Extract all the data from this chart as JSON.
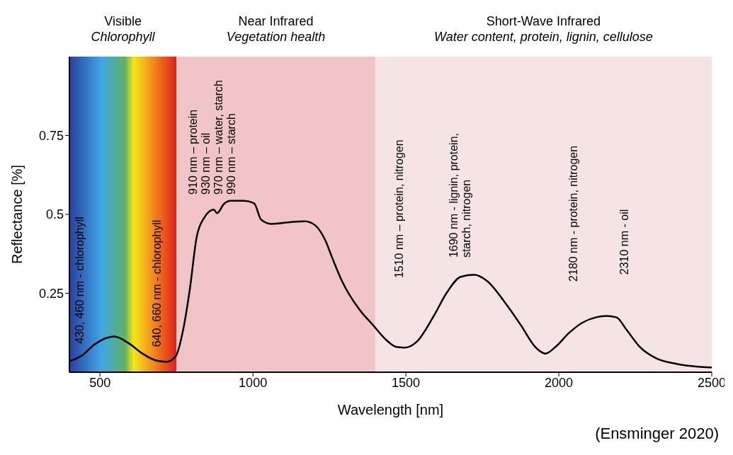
{
  "chart_data": {
    "type": "line",
    "xlabel": "Wavelength [nm]",
    "ylabel": "Reflectance [%]",
    "xlim": [
      400,
      2500
    ],
    "xticks": [
      500,
      1000,
      1500,
      2000,
      2500
    ],
    "ylim": [
      0,
      1.0
    ],
    "yticks": [
      0.25,
      0.5,
      0.75
    ],
    "grid": false,
    "legend": false,
    "marker": "none",
    "line_style": "solid",
    "series": [
      {
        "color": "#000000",
        "x": [
          400,
          440,
          485,
          546,
          595,
          639,
          684,
          717,
          746,
          772,
          794,
          816,
          839,
          872,
          883,
          905,
          927,
          971,
          1004,
          1027,
          1060,
          1126,
          1170,
          1204,
          1237,
          1259,
          1292,
          1347,
          1392,
          1436,
          1469,
          1498,
          1535,
          1591,
          1635,
          1679,
          1723,
          1768,
          1823,
          1878,
          1923,
          1956,
          1989,
          2033,
          2077,
          2122,
          2155,
          2188,
          2221,
          2265,
          2321,
          2387,
          2500
        ],
        "values": [
          0.035,
          0.052,
          0.09,
          0.113,
          0.091,
          0.059,
          0.037,
          0.033,
          0.048,
          0.135,
          0.265,
          0.428,
          0.487,
          0.515,
          0.504,
          0.533,
          0.543,
          0.543,
          0.535,
          0.483,
          0.47,
          0.476,
          0.478,
          0.465,
          0.417,
          0.363,
          0.287,
          0.2,
          0.15,
          0.102,
          0.08,
          0.078,
          0.096,
          0.178,
          0.254,
          0.302,
          0.309,
          0.287,
          0.222,
          0.146,
          0.08,
          0.059,
          0.08,
          0.124,
          0.157,
          0.174,
          0.178,
          0.174,
          0.135,
          0.08,
          0.043,
          0.026,
          0.015
        ]
      }
    ],
    "bands": [
      {
        "axis": "x",
        "from": 400,
        "to": 750,
        "label": "Visible\nChlorophyll"
      },
      {
        "axis": "x",
        "from": 750,
        "to": 1400,
        "label": "Near Infrared\nVegetation health",
        "color": "#f1c5c7"
      },
      {
        "axis": "x",
        "from": 1400,
        "to": 2500,
        "label": "Short-Wave Infrared\nWater content, protein, lignin, cellulose",
        "color": "#f6e4e4"
      }
    ],
    "annotations": [
      "430, 460 nm - chlorophyll",
      "640, 660 nm - chlorophyll",
      "910 nm – protein\n930 nm – oil\n970 nm – water, starch\n990 nm – starch",
      "1510 nm – protein, nitrogen",
      "1690 nm - lignin, protein,\nstarch, nitrogen",
      "2180 nm - protein, nitrogen",
      "2310 nm - oil",
      "(Ensminger 2020)"
    ]
  }
}
